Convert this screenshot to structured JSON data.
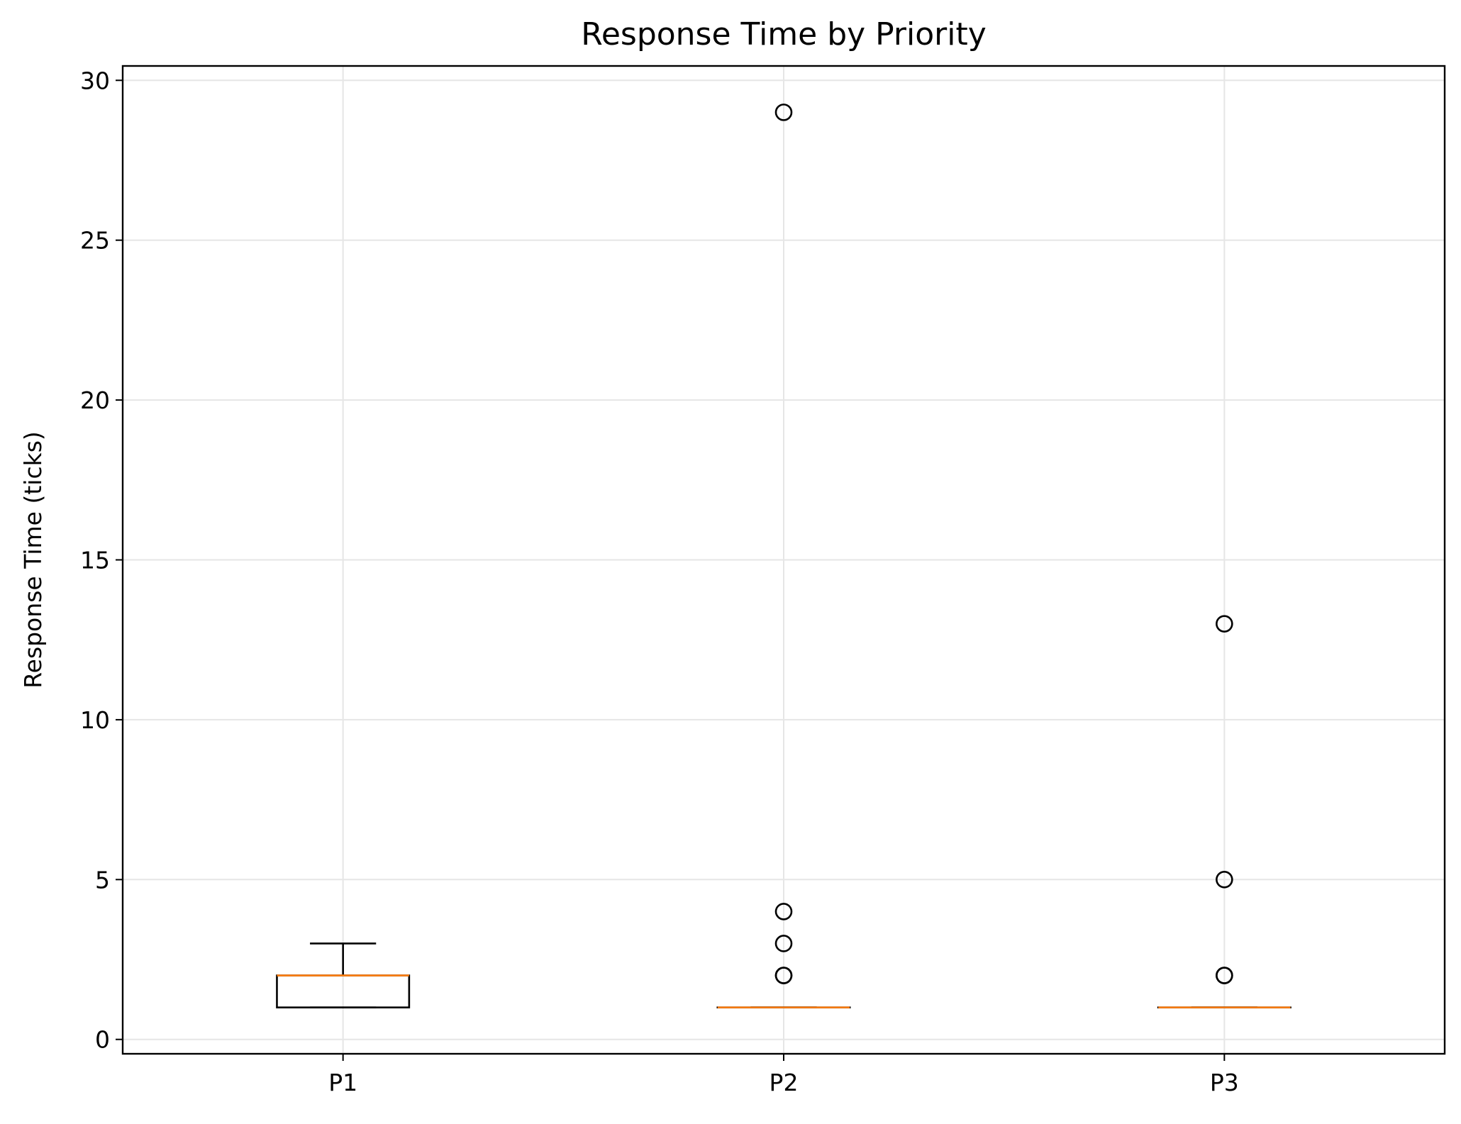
{
  "chart_data": {
    "type": "box",
    "title": "Response Time by Priority",
    "xlabel": "",
    "ylabel": "Response Time (ticks)",
    "categories": [
      "P1",
      "P2",
      "P3"
    ],
    "ylim": [
      -0.45,
      30.45
    ],
    "yticks": [
      0,
      5,
      10,
      15,
      20,
      25,
      30
    ],
    "grid": true,
    "boxes": [
      {
        "category": "P1",
        "whisker_low": 1,
        "q1": 1,
        "median": 2,
        "q3": 2,
        "whisker_high": 3,
        "outliers": []
      },
      {
        "category": "P2",
        "whisker_low": 1,
        "q1": 1,
        "median": 1,
        "q3": 1,
        "whisker_high": 1,
        "outliers": [
          2,
          2,
          3,
          4,
          29
        ]
      },
      {
        "category": "P3",
        "whisker_low": 1,
        "q1": 1,
        "median": 1,
        "q3": 1,
        "whisker_high": 1,
        "outliers": [
          2,
          2,
          5,
          13
        ]
      }
    ],
    "colors": {
      "box": "#000000",
      "median": "#ff7f0e",
      "grid": "#e6e6e6"
    }
  }
}
